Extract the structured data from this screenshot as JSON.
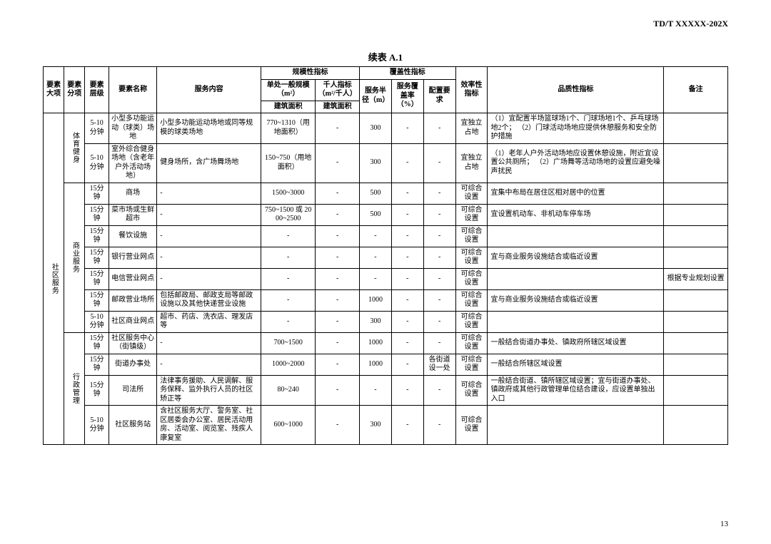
{
  "header": {
    "docId": "TD/T  XXXXX-202X",
    "pageNumber": "13"
  },
  "table": {
    "caption": "续表 A.1",
    "head": {
      "major": "要素大项",
      "sub": "要素分项",
      "level": "要素层级",
      "name": "要素名称",
      "content": "服务内容",
      "scaleGroup": "规模性指标",
      "scale": "单处一般规模（m²）",
      "thousand": "千人指标（m²/千人）",
      "scaleSub": "建筑面积",
      "thousandSub": "建筑面积",
      "coverGroup": "覆盖性指标",
      "radius": "服务半径（m）",
      "coverRate": "服务覆盖率（%）",
      "config": "配置要求",
      "efficiency": "效率性指标",
      "quality": "品质性指标",
      "remark": "备注"
    },
    "majorLabel": "社区服务",
    "groups": [
      {
        "subLabel": "体育健身",
        "rows": [
          {
            "level": "5-10分钟",
            "name": "小型多功能运动（球类）场地",
            "content": "小型多功能运动场地或同等规模的球类场地",
            "scale": "770~1310（用地面积）",
            "thousand": "-",
            "radius": "300",
            "cover": "-",
            "config": "-",
            "eff": "宜独立占地",
            "quality": "（1）宜配置半场篮球场1个、门球场地1个、乒乓球场地2个；\n（2）门球活动场地应提供休憩服务和安全防护措施",
            "remark": ""
          },
          {
            "level": "5-10分钟",
            "name": "室外综合健身场地（含老年户外活动场地）",
            "content": "健身场所，含广场舞场地",
            "scale": "150~750（用地面积）",
            "thousand": "-",
            "radius": "300",
            "cover": "-",
            "config": "-",
            "eff": "宜独立占地",
            "quality": "（1）老年人户外活动场地应设置休憩设施，附近宜设置公共厕所；\n（2）广场舞等活动场地的设置应避免噪声扰民",
            "remark": ""
          }
        ]
      },
      {
        "subLabel": "商业服务",
        "rows": [
          {
            "level": "15分钟",
            "name": "商场",
            "content": "-",
            "scale": "1500~3000",
            "thousand": "-",
            "radius": "500",
            "cover": "-",
            "config": "-",
            "eff": "可综合设置",
            "quality": "宜集中布局在居住区相对居中的位置",
            "remark": ""
          },
          {
            "level": "15分钟",
            "name": "菜市场或生鲜超市",
            "content": "-",
            "scale": "750~1500 或 2000~2500",
            "thousand": "-",
            "radius": "500",
            "cover": "-",
            "config": "-",
            "eff": "可综合设置",
            "quality": "宜设置机动车、非机动车停车场",
            "remark": ""
          },
          {
            "level": "15分钟",
            "name": "餐饮设施",
            "content": "-",
            "scale": "-",
            "thousand": "-",
            "radius": "-",
            "cover": "-",
            "config": "-",
            "eff": "可综合设置",
            "quality": "",
            "remark": ""
          },
          {
            "level": "15分钟",
            "name": "银行营业网点",
            "content": "-",
            "scale": "-",
            "thousand": "-",
            "radius": "-",
            "cover": "-",
            "config": "-",
            "eff": "可综合设置",
            "quality": "宜与商业服务设施结合或临近设置",
            "remark": ""
          },
          {
            "level": "15分钟",
            "name": "电信营业网点",
            "content": "-",
            "scale": "-",
            "thousand": "-",
            "radius": "-",
            "cover": "-",
            "config": "-",
            "eff": "可综合设置",
            "quality": "",
            "remark": "根据专业规划设置"
          },
          {
            "level": "15分钟",
            "name": "邮政营业场所",
            "content": "包括邮政局、邮政支局等邮政设施以及其他快递营业设施",
            "scale": "-",
            "thousand": "-",
            "radius": "1000",
            "cover": "-",
            "config": "-",
            "eff": "可综合设置",
            "quality": "宜与商业服务设施结合或临近设置",
            "remark": ""
          },
          {
            "level": "5-10分钟",
            "name": "社区商业网点",
            "content": "超市、药店、洗衣店、理发店等",
            "scale": "-",
            "thousand": "-",
            "radius": "300",
            "cover": "-",
            "config": "-",
            "eff": "可综合设置",
            "quality": "",
            "remark": ""
          }
        ]
      },
      {
        "subLabel": "行政管理",
        "rows": [
          {
            "level": "15分钟",
            "name": "社区服务中心（街镇级）",
            "content": "-",
            "scale": "700~1500",
            "thousand": "-",
            "radius": "1000",
            "cover": "-",
            "config": "-",
            "eff": "可综合设置",
            "quality": "一般结合街道办事处、镇政府所辖区域设置",
            "remark": ""
          },
          {
            "level": "15分钟",
            "name": "街道办事处",
            "content": "-",
            "scale": "1000~2000",
            "thousand": "-",
            "radius": "1000",
            "cover": "-",
            "config": "各街道设一处",
            "eff": "可综合设置",
            "quality": "一般结合所辖区域设置",
            "remark": ""
          },
          {
            "level": "15分钟",
            "name": "司法所",
            "content": "法律事务援助、人民调解、服务保释、监外执行人员的社区矫正等",
            "scale": "80~240",
            "thousand": "-",
            "radius": "-",
            "cover": "-",
            "config": "-",
            "eff": "可综合设置",
            "quality": "一般结合街道、镇所辖区域设置；宜与街道办事处、镇政府或其他行政管理单位结合建设，应设置单独出入口",
            "remark": ""
          },
          {
            "level": "5-10分钟",
            "name": "社区服务站",
            "content": "含社区服务大厅、警务室、社区居委会办公室、居民活动用房、活动室、阅览室、残疾人康复室",
            "scale": "600~1000",
            "thousand": "-",
            "radius": "300",
            "cover": "-",
            "config": "-",
            "eff": "可综合设置",
            "quality": "",
            "remark": ""
          }
        ]
      }
    ]
  }
}
